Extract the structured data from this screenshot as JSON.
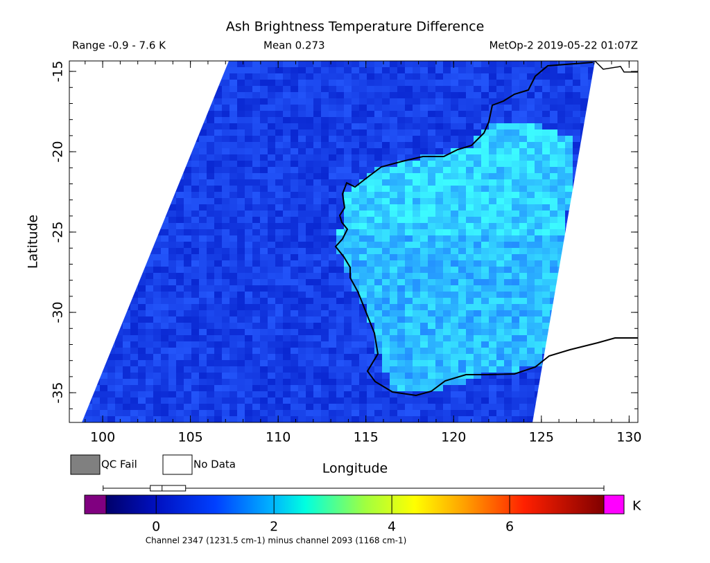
{
  "title": "Ash Brightness Temperature Difference",
  "header": {
    "range": "Range -0.9 - 7.6 K",
    "mean": "Mean 0.273",
    "source": "MetOp-2 2019-05-22 01:07Z"
  },
  "x_axis": {
    "label": "Longitude",
    "lim": [
      98.1,
      130.5
    ],
    "ticks": [
      100,
      105,
      110,
      115,
      120,
      125,
      130
    ]
  },
  "y_axis": {
    "label": "Latitude",
    "lim": [
      -36.85,
      -14.35
    ],
    "ticks": [
      -15,
      -20,
      -25,
      -30,
      -35
    ]
  },
  "legend": [
    {
      "label": "QC Fail",
      "color": "#808080"
    },
    {
      "label": "No Data",
      "color": "#ffffff"
    }
  ],
  "colorbar": {
    "lim": [
      -0.85,
      7.6
    ],
    "ticks": [
      0,
      2,
      4,
      6
    ],
    "unit": "K",
    "under_color": "#800080",
    "over_color": "#ff00ff",
    "boxplot": {
      "min": -0.9,
      "q1": -0.1,
      "median": 0.1,
      "q3": 0.5,
      "max": 7.6
    }
  },
  "caption": "Channel 2347 (1231.5 cm-1) minus channel 2093 (1168 cm-1)"
}
